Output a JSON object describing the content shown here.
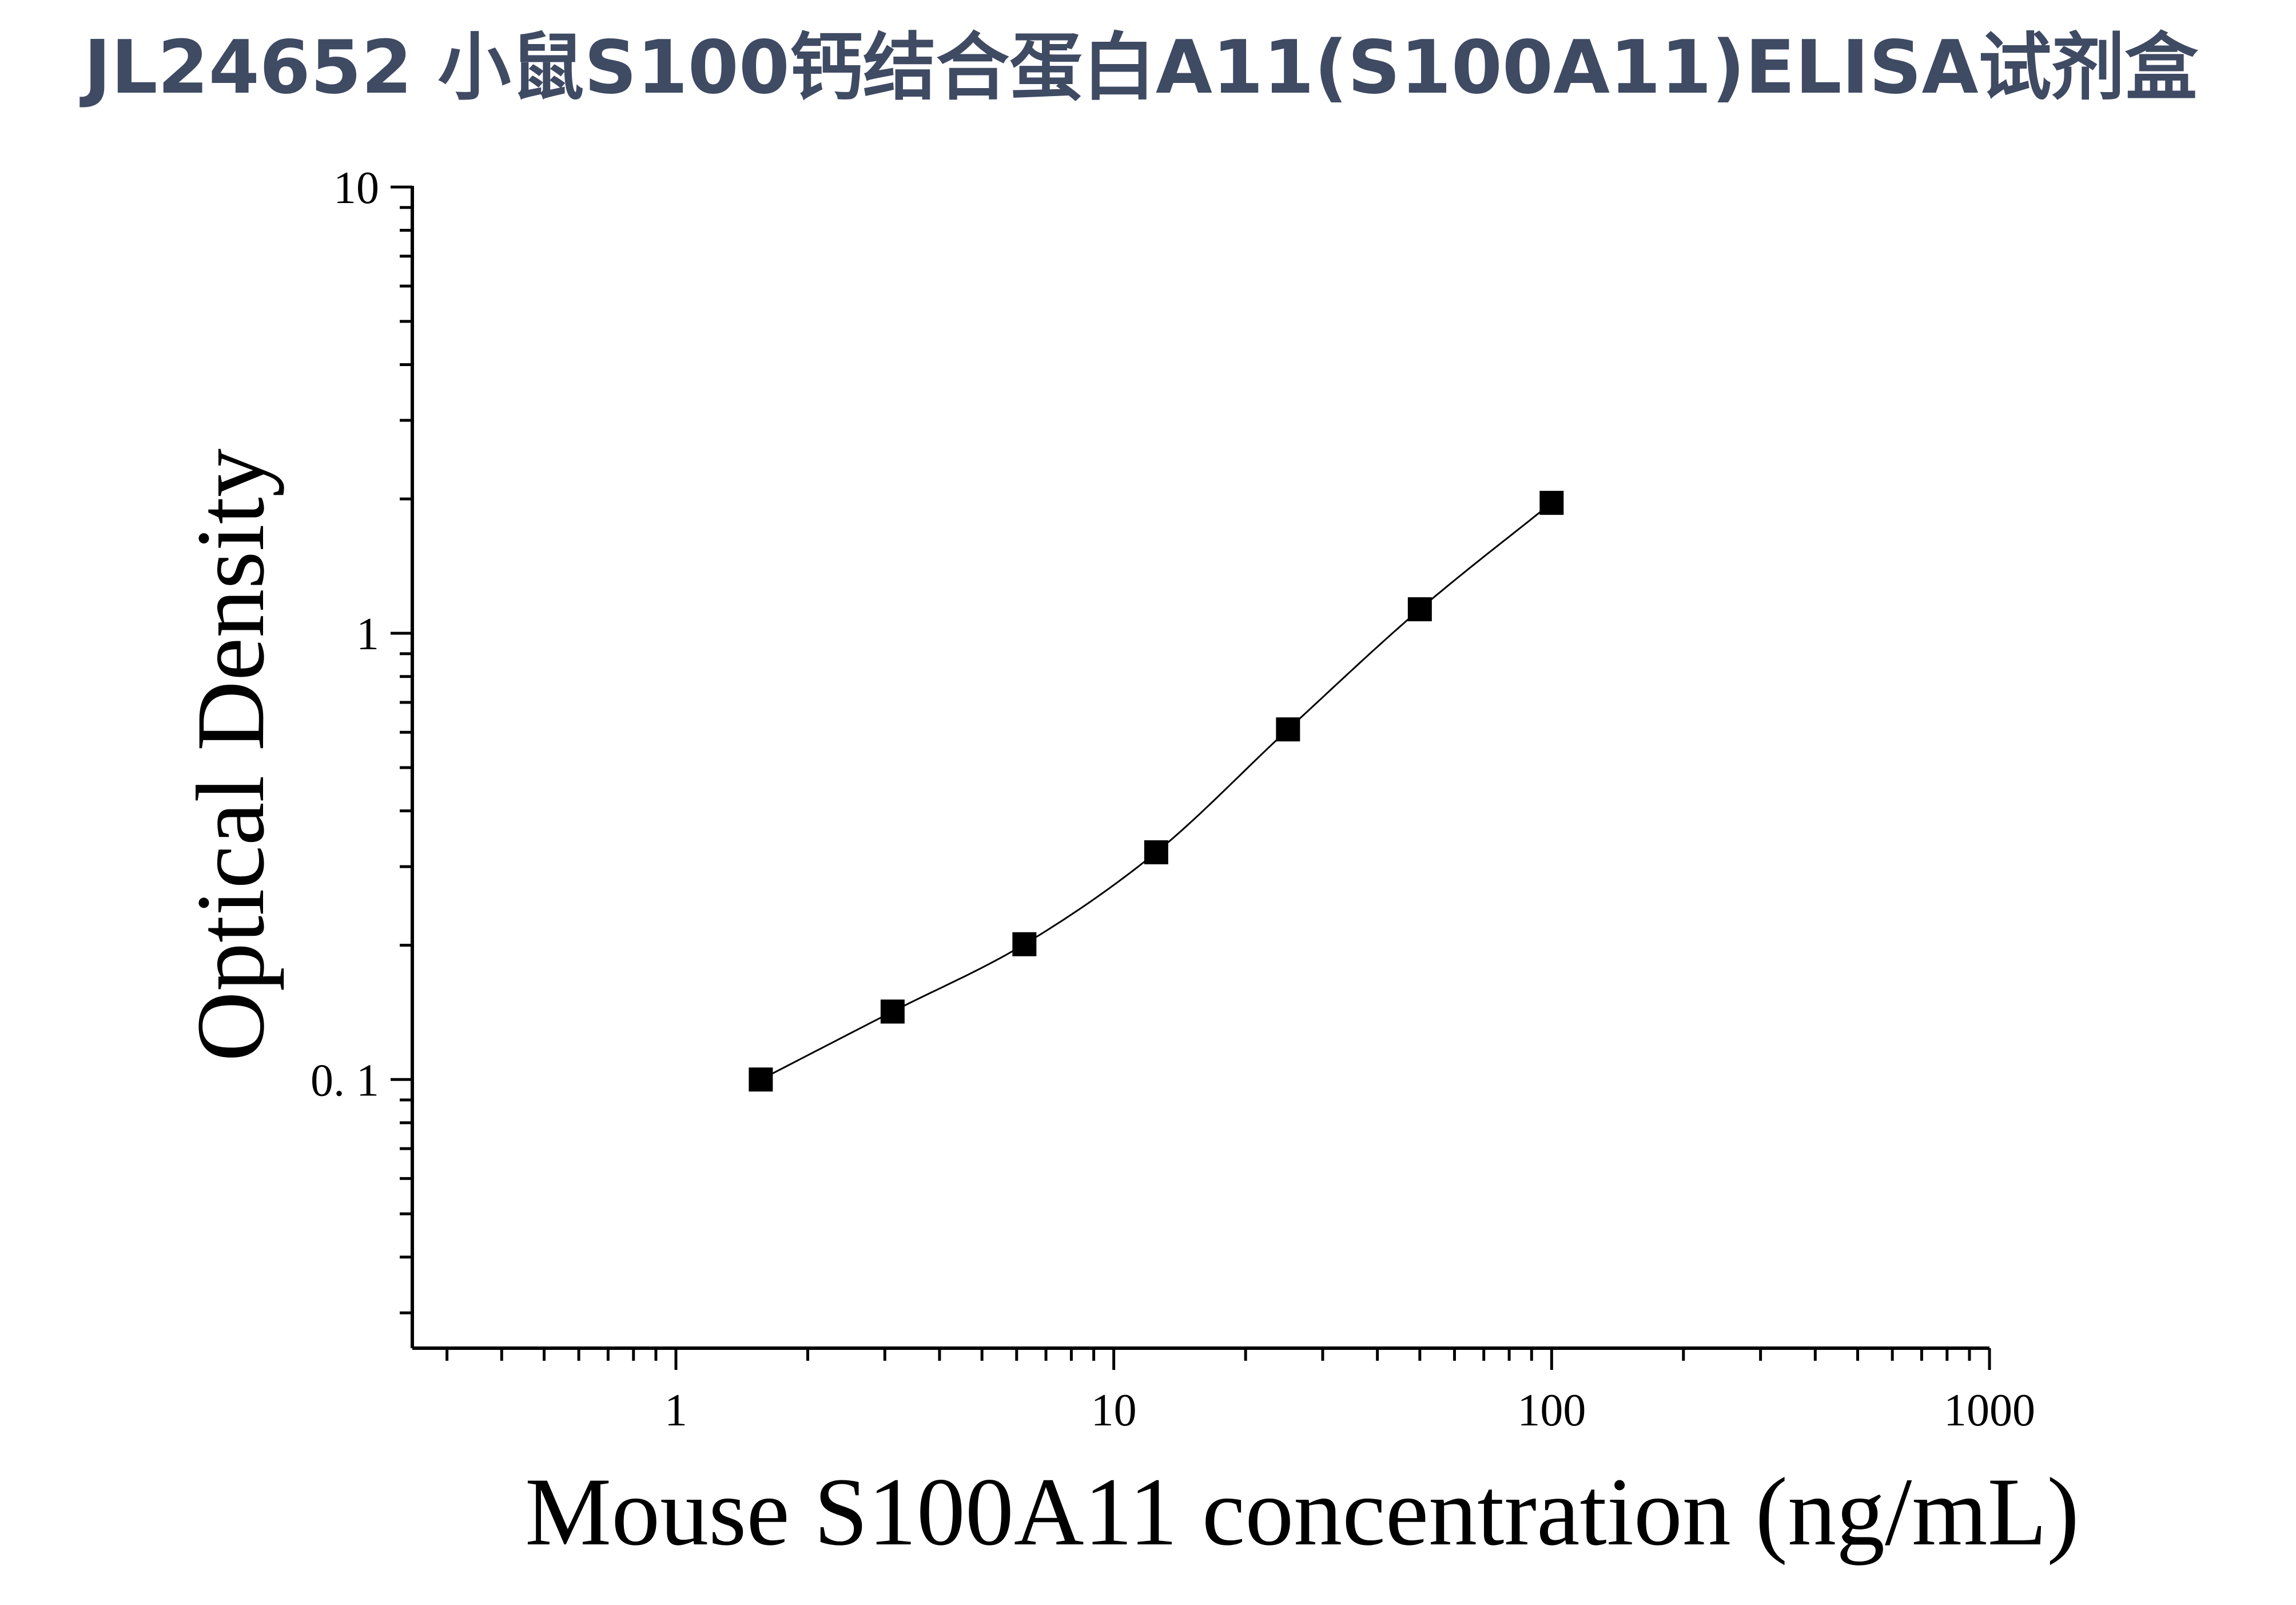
{
  "chart_data": {
    "type": "scatter",
    "title": "JL24652 小鼠S100钙结合蛋白A11(S100A11)ELISA试剂盒",
    "xlabel": "Mouse S100A11 concentration (ng/mL)",
    "ylabel": "Optical Density",
    "x_scale": "log",
    "y_scale": "log",
    "xlim": [
      0.25,
      1000
    ],
    "ylim": [
      0.025,
      10
    ],
    "x_ticks": [
      1,
      10,
      100,
      1000
    ],
    "x_tick_labels": [
      "1",
      "10",
      "100",
      "1000"
    ],
    "y_ticks": [
      0.1,
      1,
      10
    ],
    "y_tick_labels": [
      "0. 1",
      "1",
      "10"
    ],
    "grid": false,
    "legend": false,
    "series": [
      {
        "marker": "square",
        "fit_line": true,
        "x": [
          1.5625,
          3.125,
          6.25,
          12.5,
          25,
          50,
          100
        ],
        "y": [
          0.1,
          0.142,
          0.201,
          0.323,
          0.609,
          1.132,
          1.96
        ]
      }
    ],
    "colors": {
      "title": "#3f4a63",
      "axis": "#000000",
      "marker": "#000000"
    }
  }
}
